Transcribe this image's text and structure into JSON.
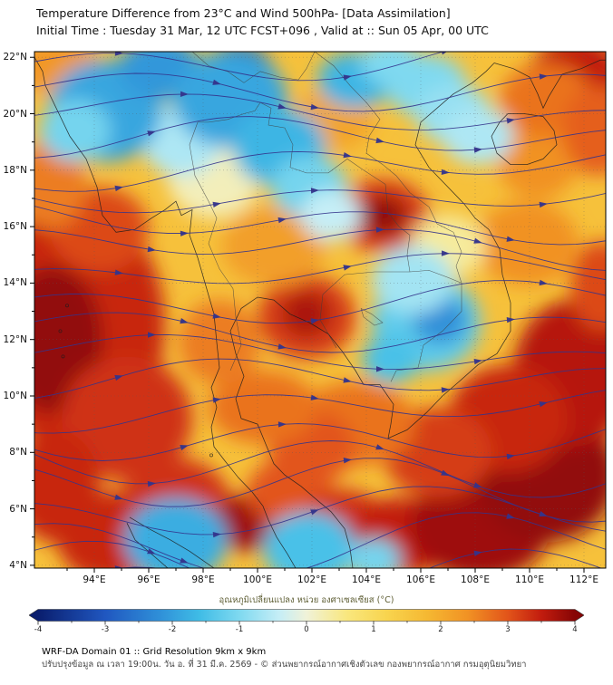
{
  "header": {
    "title": "Temperature Difference from 23°C and Wind 500hPa- [Data Assimilation]",
    "subtitle": "Initial Time : Tuesday 31 Mar, 12 UTC FCST+096 , Valid at ::  Sun 05 Apr, 00 UTC"
  },
  "footer": {
    "line1": "WRF-DA Domain 01 :: Grid Resolution 9km x 9km",
    "line2": "ปรับปรุงข้อมูล ณ เวลา 19:00น. วัน อ. ที่ 31 มี.ค. 2569 - © ส่วนพยากรณ์อากาศเชิงตัวเลข กองพยากรณ์อากาศ กรมอุตุนิยมวิทยา"
  },
  "chart_data": {
    "type": "heatmap",
    "overlays": [
      "wind_streamlines_500hPa",
      "coastlines",
      "country_borders",
      "lat_lon_grid"
    ],
    "title": "Temperature Difference from 23°C and Wind 500hPa- [Data Assimilation]",
    "lon_range": [
      91.8,
      112.8
    ],
    "lat_range": [
      3.9,
      22.2
    ],
    "x_axis": {
      "values": [
        94,
        96,
        98,
        100,
        102,
        104,
        106,
        108,
        110,
        112
      ],
      "labels": [
        "94°E",
        "96°E",
        "98°E",
        "100°E",
        "102°E",
        "104°E",
        "106°E",
        "108°E",
        "110°E",
        "112°E"
      ]
    },
    "y_axis": {
      "values": [
        4,
        6,
        8,
        10,
        12,
        14,
        16,
        18,
        20,
        22
      ],
      "labels": [
        "4°N",
        "6°N",
        "8°N",
        "10°N",
        "12°N",
        "14°N",
        "16°N",
        "18°N",
        "20°N",
        "22°N"
      ]
    },
    "base_value": 1.6,
    "colorbar": {
      "label": "อุณหภูมิเปลี่ยนแปลง หน่วย องศาเซลเซียส (°C)",
      "range": [
        -4,
        4
      ],
      "ticks": [
        -4,
        -3,
        -2,
        -1,
        0,
        1,
        2,
        3,
        4
      ],
      "stops": [
        {
          "v": -4.0,
          "c": "#0a1e6e"
        },
        {
          "v": -3.0,
          "c": "#2057c0"
        },
        {
          "v": -2.2,
          "c": "#2f8fd8"
        },
        {
          "v": -1.6,
          "c": "#3fbce6"
        },
        {
          "v": -1.0,
          "c": "#7fd9f0"
        },
        {
          "v": -0.4,
          "c": "#c6eef6"
        },
        {
          "v": 0.0,
          "c": "#f0f2d8"
        },
        {
          "v": 0.6,
          "c": "#f9e77e"
        },
        {
          "v": 1.2,
          "c": "#f8d44e"
        },
        {
          "v": 1.8,
          "c": "#f5b832"
        },
        {
          "v": 2.4,
          "c": "#f19224"
        },
        {
          "v": 3.0,
          "c": "#e2541a"
        },
        {
          "v": 3.5,
          "c": "#c21c0e"
        },
        {
          "v": 4.0,
          "c": "#860505"
        }
      ]
    },
    "wind": {
      "level": "500hPa",
      "direction": "westerly, wavy streamlines with eastward arrows",
      "color": "#34348c",
      "line_count": 22
    },
    "anomaly_features": {
      "format": [
        "lon",
        "lat",
        "rx_deg",
        "ry_deg",
        "delta_c"
      ],
      "points": [
        [
          93.2,
          12.5,
          3.4,
          4.4,
          3.4
        ],
        [
          92.5,
          12.0,
          1.8,
          2.6,
          3.9
        ],
        [
          95.2,
          9.2,
          2.4,
          2.2,
          3.3
        ],
        [
          94.2,
          15.9,
          1.8,
          1.5,
          3.1
        ],
        [
          92.4,
          17.5,
          1.3,
          1.6,
          2.6
        ],
        [
          92.6,
          21.7,
          1.6,
          1.0,
          2.3
        ],
        [
          97.0,
          6.2,
          2.0,
          1.6,
          3.3
        ],
        [
          94.6,
          5.0,
          2.0,
          1.6,
          3.4
        ],
        [
          92.6,
          6.8,
          1.6,
          2.0,
          3.4
        ],
        [
          99.6,
          5.5,
          1.2,
          1.0,
          3.8
        ],
        [
          101.2,
          6.6,
          1.6,
          1.2,
          3.0
        ],
        [
          103.2,
          5.4,
          1.6,
          1.3,
          3.3
        ],
        [
          105.2,
          5.0,
          1.8,
          1.4,
          3.5
        ],
        [
          108.2,
          5.4,
          2.6,
          1.9,
          3.8
        ],
        [
          110.6,
          7.2,
          2.6,
          2.4,
          3.9
        ],
        [
          111.6,
          10.8,
          2.2,
          2.6,
          3.6
        ],
        [
          109.2,
          9.2,
          2.2,
          1.9,
          3.4
        ],
        [
          106.6,
          8.0,
          2.0,
          1.6,
          3.2
        ],
        [
          103.6,
          9.0,
          2.2,
          1.5,
          2.7
        ],
        [
          102.0,
          8.2,
          1.6,
          1.3,
          3.0
        ],
        [
          100.2,
          9.6,
          2.0,
          1.3,
          2.7
        ],
        [
          98.6,
          11.9,
          1.5,
          1.5,
          2.6
        ],
        [
          101.8,
          12.8,
          1.8,
          1.5,
          3.2
        ],
        [
          101.8,
          12.9,
          0.9,
          0.8,
          3.7
        ],
        [
          104.6,
          16.4,
          1.7,
          1.3,
          3.2
        ],
        [
          104.6,
          16.4,
          0.9,
          0.7,
          3.9
        ],
        [
          100.6,
          15.3,
          1.9,
          1.4,
          2.2
        ],
        [
          102.8,
          19.8,
          1.5,
          1.1,
          2.1
        ],
        [
          110.3,
          18.3,
          1.5,
          1.3,
          2.4
        ],
        [
          109.9,
          15.4,
          1.9,
          1.5,
          2.4
        ],
        [
          112.6,
          13.9,
          1.1,
          1.6,
          3.1
        ],
        [
          111.7,
          21.4,
          1.7,
          1.3,
          3.5
        ],
        [
          110.6,
          20.5,
          1.7,
          1.3,
          2.7
        ],
        [
          112.5,
          19.4,
          1.3,
          1.6,
          2.9
        ],
        [
          98.4,
          17.7,
          1.7,
          1.4,
          0.2
        ],
        [
          97.2,
          19.1,
          1.5,
          1.3,
          -0.6
        ],
        [
          107.0,
          15.3,
          1.4,
          1.1,
          0.4
        ],
        [
          94.3,
          20.4,
          1.1,
          0.95,
          -3.3
        ],
        [
          94.4,
          20.1,
          2.1,
          1.8,
          -1.9
        ],
        [
          96.4,
          21.6,
          1.5,
          1.1,
          -2.1
        ],
        [
          93.3,
          19.4,
          1.3,
          1.1,
          -1.1
        ],
        [
          99.3,
          21.4,
          1.3,
          1.05,
          -3.1
        ],
        [
          99.0,
          20.5,
          2.1,
          1.7,
          -1.9
        ],
        [
          100.8,
          18.8,
          1.7,
          1.4,
          -1.7
        ],
        [
          101.9,
          17.4,
          1.4,
          1.1,
          -1.1
        ],
        [
          102.7,
          16.4,
          1.1,
          0.9,
          -0.4
        ],
        [
          103.6,
          21.2,
          1.4,
          1.0,
          -1.7
        ],
        [
          104.9,
          21.8,
          1.1,
          0.8,
          -1.0
        ],
        [
          106.2,
          21.0,
          1.5,
          1.1,
          -1.0
        ],
        [
          107.2,
          20.0,
          1.4,
          1.05,
          -0.8
        ],
        [
          108.1,
          19.2,
          1.3,
          1.0,
          -0.6
        ],
        [
          106.2,
          12.6,
          2.0,
          1.7,
          -1.3
        ],
        [
          106.7,
          12.7,
          1.0,
          0.85,
          -2.2
        ],
        [
          104.9,
          11.3,
          1.05,
          0.85,
          -1.5
        ],
        [
          105.7,
          14.1,
          1.5,
          1.2,
          -0.7
        ],
        [
          97.1,
          4.4,
          1.05,
          0.9,
          -3.4
        ],
        [
          97.0,
          4.9,
          1.9,
          1.5,
          -1.8
        ],
        [
          101.9,
          4.2,
          1.0,
          0.85,
          -3.2
        ],
        [
          101.9,
          4.6,
          1.7,
          1.3,
          -1.5
        ],
        [
          104.3,
          4.2,
          0.95,
          0.75,
          -1.1
        ]
      ]
    }
  }
}
